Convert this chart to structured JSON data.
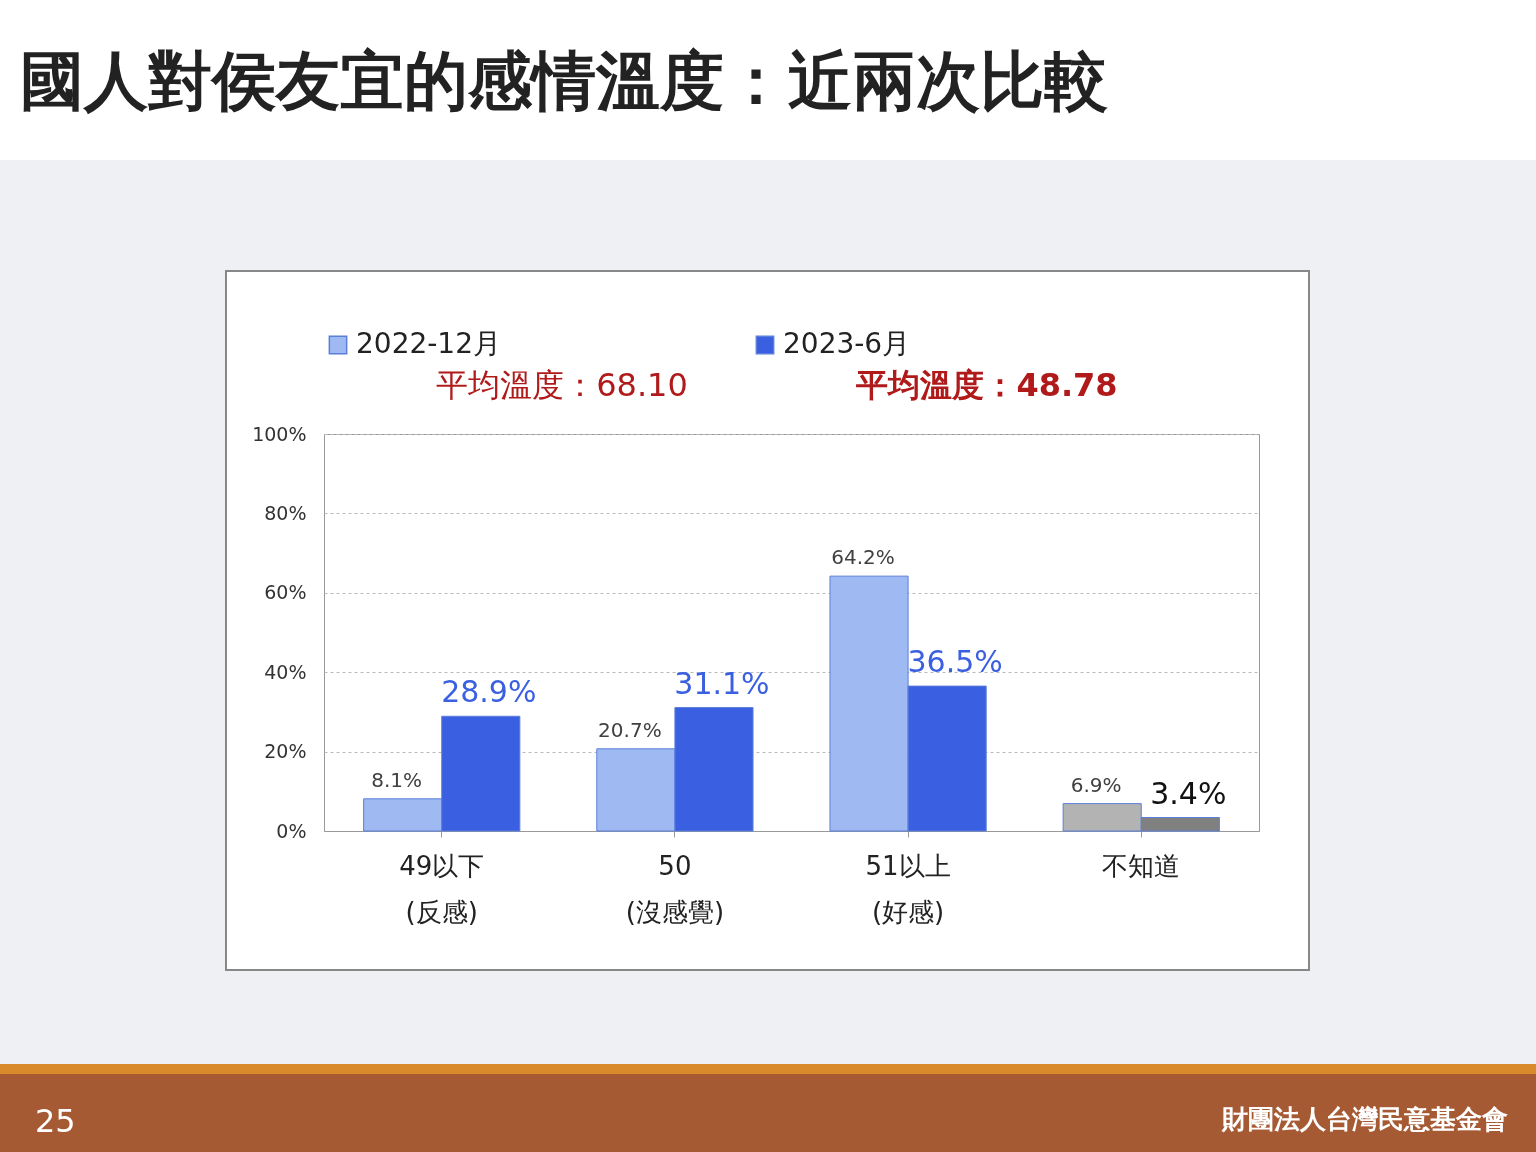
{
  "chart_data": {
    "type": "bar",
    "title": "國人對侯友宜的感情溫度：近兩次比較",
    "categories": [
      "49以下\n(反感)",
      "50\n(沒感覺)",
      "51以上\n(好感)",
      "不知道"
    ],
    "series": [
      {
        "name": "2022-12月",
        "color": "#9fbaf2",
        "colors": [
          "#9fbaf2",
          "#9fbaf2",
          "#9fbaf2",
          "#b3b3b3"
        ],
        "values": [
          8.1,
          20.7,
          64.2,
          6.9
        ],
        "value_labels": [
          "8.1%",
          "20.7%",
          "64.2%",
          "6.9%"
        ]
      },
      {
        "name": "2023-6月",
        "color": "#3a5fe0",
        "colors": [
          "#3a5fe0",
          "#3a5fe0",
          "#3a5fe0",
          "#808080"
        ],
        "values": [
          28.9,
          31.1,
          36.5,
          3.4
        ],
        "value_labels": [
          "28.9%",
          "31.1%",
          "36.5%",
          "3.4%"
        ]
      }
    ],
    "ylim": [
      0,
      100
    ],
    "yticks": [
      {
        "value": 0,
        "label": "0%"
      },
      {
        "value": 20,
        "label": "20%"
      },
      {
        "value": 40,
        "label": "40%"
      },
      {
        "value": 60,
        "label": "60%"
      },
      {
        "value": 80,
        "label": "80%"
      },
      {
        "value": 100,
        "label": "100%"
      }
    ],
    "grid": "y",
    "legend": "top",
    "annotations": [
      "平均溫度：68.10",
      "平均溫度：48.78",
      "25",
      "財團法人台灣民意基金會"
    ]
  }
}
